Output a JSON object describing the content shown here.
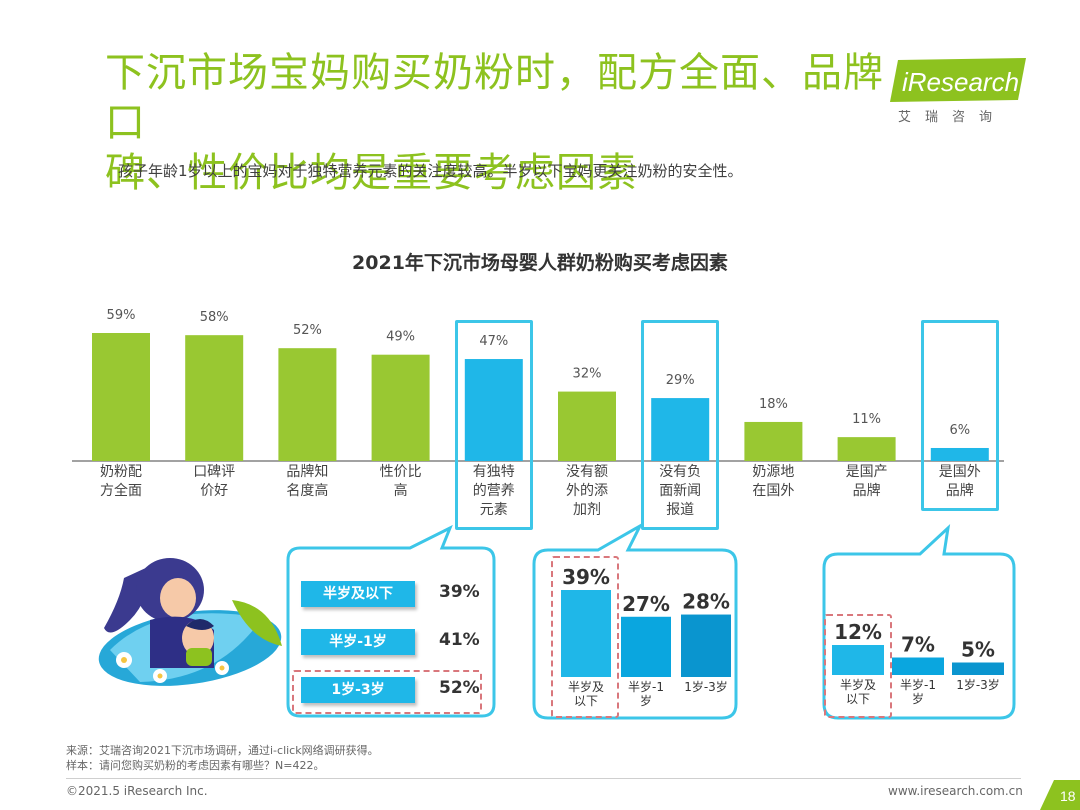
{
  "header": {
    "title_line1": "下沉市场宝妈购买奶粉时，配方全面、品牌口",
    "title_line2": "碑、性价比均是重要考虑因素",
    "subtitle": "孩子年龄1岁以上的宝妈对于独特营养元素的关注度较高。半岁以下宝妈更关注奶粉的安全性。",
    "logo_text": "iResearch",
    "logo_tag": "艾瑞咨询"
  },
  "colors": {
    "green": "#99c832",
    "blue": "#1fb7e8",
    "highlight": "#3cc6e8",
    "title_green": "#8dc21f"
  },
  "chart_data": [
    {
      "type": "bar",
      "title": "2021年下沉市场母婴人群奶粉购买考虑因素",
      "categories": [
        "奶粉配方全面",
        "口碑评价好",
        "品牌知名度高",
        "性价比高",
        "有独特的营养元素",
        "没有额外的添加剂",
        "没有负面新闻报道",
        "奶源地在国外",
        "是国产品牌",
        "是国外品牌"
      ],
      "category_lines": [
        [
          "奶粉配",
          "方全面"
        ],
        [
          "口碑评",
          "价好"
        ],
        [
          "品牌知",
          "名度高"
        ],
        [
          "性价比",
          "高"
        ],
        [
          "有独特",
          "的营养",
          "元素"
        ],
        [
          "没有额",
          "外的添",
          "加剂"
        ],
        [
          "没有负",
          "面新闻",
          "报道"
        ],
        [
          "奶源地",
          "在国外"
        ],
        [
          "是国产",
          "品牌"
        ],
        [
          "是国外",
          "品牌"
        ]
      ],
      "values": [
        59,
        58,
        52,
        49,
        47,
        32,
        29,
        18,
        11,
        6
      ],
      "value_labels": [
        "59%",
        "58%",
        "52%",
        "49%",
        "47%",
        "32%",
        "29%",
        "18%",
        "11%",
        "6%"
      ],
      "highlighted": [
        4,
        6,
        9
      ],
      "bar_colors": [
        "green",
        "green",
        "green",
        "green",
        "blue",
        "green",
        "blue",
        "green",
        "green",
        "blue"
      ]
    },
    {
      "type": "table",
      "parent": "有独特的营养元素",
      "categories": [
        "半岁及以下",
        "半岁-1岁",
        "1岁-3岁"
      ],
      "values": [
        39,
        41,
        52
      ],
      "value_labels": [
        "39%",
        "41%",
        "52%"
      ],
      "emphasized_index": 2
    },
    {
      "type": "bar",
      "parent": "没有负面新闻报道",
      "categories": [
        "半岁及以下",
        "半岁-1岁",
        "1岁-3岁"
      ],
      "category_lines": [
        [
          "半岁及",
          "以下"
        ],
        [
          "半岁-1",
          "岁"
        ],
        [
          "1岁-3岁"
        ]
      ],
      "values": [
        39,
        27,
        28
      ],
      "value_labels": [
        "39%",
        "27%",
        "28%"
      ],
      "emphasized_index": 0
    },
    {
      "type": "bar",
      "parent": "是国外品牌",
      "categories": [
        "半岁及以下",
        "半岁-1岁",
        "1岁-3岁"
      ],
      "category_lines": [
        [
          "半岁及",
          "以下"
        ],
        [
          "半岁-1",
          "岁"
        ],
        [
          "1岁-3岁"
        ]
      ],
      "values": [
        12,
        7,
        5
      ],
      "value_labels": [
        "12%",
        "7%",
        "5%"
      ],
      "emphasized_index": 0
    }
  ],
  "footer": {
    "source_line1": "来源：艾瑞咨询2021下沉市场调研，通过i-click网络调研获得。",
    "source_line2": "样本：请问您购买奶粉的考虑因素有哪些？N=422。",
    "copyright": "©2021.5 iResearch Inc.",
    "site": "www.iresearch.com.cn",
    "page_number": "18"
  }
}
